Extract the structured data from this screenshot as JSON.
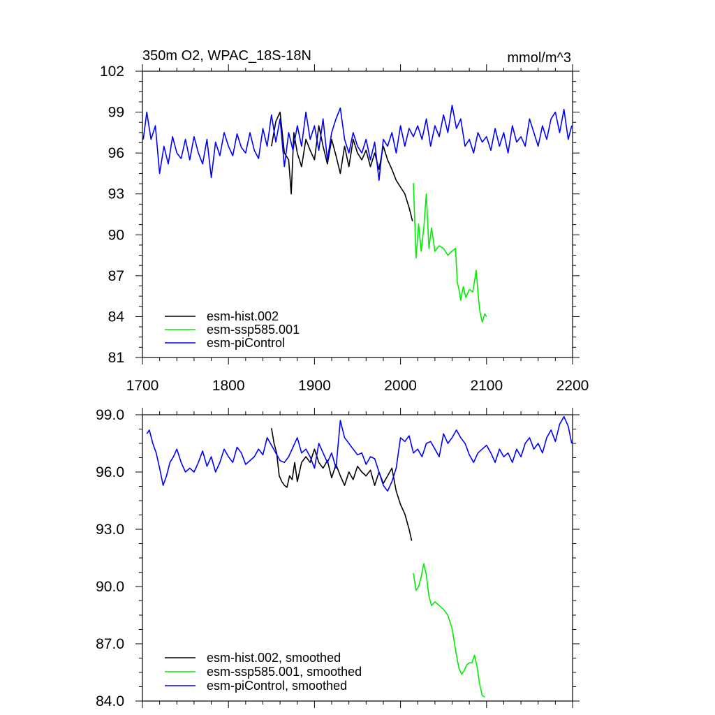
{
  "chart_data": [
    {
      "type": "line",
      "title": "350m O2, WPAC_18S-18N",
      "units": "mmol/m^3",
      "xlim": [
        1700,
        2200
      ],
      "ylim": [
        81,
        102
      ],
      "x_ticks": [
        1700,
        1800,
        1900,
        2000,
        2100,
        2200
      ],
      "x_tick_labels": [
        "1700",
        "1800",
        "1900",
        "2000",
        "2100",
        "2200"
      ],
      "y_ticks": [
        81,
        84,
        87,
        90,
        93,
        96,
        99,
        102
      ],
      "y_tick_labels": [
        "81",
        "84",
        "87",
        "90",
        "93",
        "96",
        "99",
        "102"
      ],
      "legend_position": "bottom-left",
      "series": [
        {
          "name": "esm-hist.002",
          "color": "#000000",
          "x": [
            1850,
            1855,
            1860,
            1865,
            1870,
            1873,
            1876,
            1880,
            1885,
            1890,
            1895,
            1900,
            1905,
            1910,
            1915,
            1920,
            1925,
            1930,
            1935,
            1940,
            1945,
            1950,
            1955,
            1960,
            1965,
            1970,
            1975,
            1980,
            1985,
            1990,
            1995,
            2000,
            2005,
            2010,
            2014
          ],
          "y": [
            96.5,
            98.3,
            99.0,
            96.0,
            95.5,
            93.0,
            97.5,
            96.0,
            95.0,
            97.0,
            96.2,
            95.5,
            98.0,
            96.5,
            95.2,
            97.0,
            95.8,
            94.5,
            96.5,
            95.0,
            97.0,
            96.0,
            95.5,
            96.2,
            95.0,
            96.0,
            94.8,
            96.5,
            95.5,
            94.8,
            94.0,
            93.5,
            93.0,
            92.0,
            91.0
          ]
        },
        {
          "name": "esm-ssp585.001",
          "color": "#00ee00",
          "x": [
            2015,
            2018,
            2021,
            2024,
            2027,
            2030,
            2033,
            2036,
            2040,
            2045,
            2050,
            2055,
            2060,
            2064,
            2066,
            2068,
            2070,
            2073,
            2076,
            2080,
            2084,
            2088,
            2090,
            2092,
            2095,
            2098,
            2100
          ],
          "y": [
            93.8,
            88.3,
            90.8,
            88.8,
            90.5,
            93.0,
            89.0,
            90.5,
            88.8,
            89.2,
            89.0,
            88.5,
            88.8,
            89.0,
            86.5,
            86.0,
            85.2,
            86.2,
            85.4,
            86.0,
            85.8,
            87.4,
            85.8,
            84.5,
            83.6,
            84.2,
            84.0
          ]
        },
        {
          "name": "esm-piControl",
          "color": "#0000ff",
          "x": [
            1701,
            1705,
            1710,
            1715,
            1720,
            1725,
            1730,
            1735,
            1740,
            1745,
            1750,
            1755,
            1760,
            1765,
            1770,
            1775,
            1780,
            1785,
            1790,
            1795,
            1800,
            1805,
            1810,
            1815,
            1820,
            1825,
            1830,
            1835,
            1840,
            1845,
            1850,
            1855,
            1860,
            1865,
            1870,
            1875,
            1880,
            1885,
            1890,
            1895,
            1900,
            1905,
            1910,
            1915,
            1920,
            1925,
            1930,
            1935,
            1940,
            1945,
            1950,
            1955,
            1960,
            1965,
            1970,
            1975,
            1980,
            1985,
            1990,
            1995,
            2000,
            2005,
            2010,
            2015,
            2020,
            2025,
            2030,
            2035,
            2040,
            2045,
            2050,
            2055,
            2060,
            2065,
            2070,
            2075,
            2080,
            2085,
            2090,
            2095,
            2100,
            2105,
            2110,
            2115,
            2120,
            2125,
            2130,
            2135,
            2140,
            2145,
            2150,
            2155,
            2160,
            2165,
            2170,
            2175,
            2180,
            2185,
            2190,
            2195,
            2199
          ],
          "y": [
            97.0,
            99.0,
            97.0,
            98.0,
            94.5,
            96.5,
            95.2,
            97.2,
            96.0,
            95.6,
            97.0,
            95.5,
            97.2,
            96.0,
            95.2,
            97.0,
            94.2,
            96.8,
            95.8,
            97.5,
            96.5,
            95.8,
            97.4,
            96.4,
            96.0,
            97.5,
            96.2,
            95.6,
            97.8,
            96.5,
            98.8,
            96.8,
            98.5,
            95.0,
            97.5,
            96.2,
            98.0,
            96.5,
            99.0,
            97.0,
            98.0,
            96.2,
            98.5,
            95.5,
            97.5,
            98.5,
            99.3,
            97.0,
            96.0,
            97.5,
            96.5,
            96.0,
            97.0,
            95.5,
            96.8,
            94.0,
            97.0,
            96.5,
            97.5,
            96.0,
            98.0,
            96.5,
            97.8,
            97.2,
            98.0,
            97.0,
            98.5,
            96.5,
            98.0,
            97.2,
            98.8,
            97.5,
            99.5,
            97.8,
            98.5,
            96.5,
            97.0,
            96.0,
            97.5,
            96.8,
            97.2,
            96.2,
            97.8,
            96.5,
            97.5,
            96.0,
            98.0,
            96.8,
            97.2,
            96.5,
            98.5,
            97.5,
            96.5,
            98.0,
            97.0,
            98.5,
            99.0,
            97.5,
            99.2,
            97.0,
            98.0
          ]
        }
      ]
    },
    {
      "type": "line",
      "xlim": [
        1700,
        2200
      ],
      "ylim": [
        84,
        99
      ],
      "x_ticks": [
        1700,
        1800,
        1900,
        2000,
        2100,
        2200
      ],
      "y_ticks": [
        84,
        87,
        90,
        93,
        96,
        99
      ],
      "y_tick_labels": [
        "84.0",
        "87.0",
        "90.0",
        "93.0",
        "96.0",
        "99.0"
      ],
      "legend_position": "bottom-left",
      "series": [
        {
          "name": "esm-hist.002, smoothed",
          "color": "#000000",
          "x": [
            1850,
            1853,
            1856,
            1859,
            1862,
            1865,
            1868,
            1871,
            1874,
            1877,
            1880,
            1885,
            1890,
            1895,
            1900,
            1905,
            1910,
            1915,
            1920,
            1925,
            1930,
            1935,
            1940,
            1945,
            1950,
            1955,
            1960,
            1965,
            1970,
            1975,
            1980,
            1985,
            1990,
            1995,
            2000,
            2005,
            2010,
            2013
          ],
          "y": [
            98.3,
            97.5,
            97.0,
            95.8,
            95.5,
            95.3,
            95.2,
            95.8,
            95.6,
            96.5,
            95.5,
            96.5,
            96.8,
            96.5,
            97.2,
            96.5,
            96.2,
            96.6,
            95.7,
            96.4,
            95.8,
            95.3,
            96.0,
            95.6,
            96.3,
            96.0,
            95.8,
            96.1,
            95.3,
            96.0,
            95.4,
            95.8,
            96.2,
            95.0,
            94.3,
            93.8,
            93.0,
            92.4
          ]
        },
        {
          "name": "esm-ssp585.001, smoothed",
          "color": "#00ee00",
          "x": [
            2015,
            2018,
            2021,
            2024,
            2027,
            2030,
            2033,
            2036,
            2040,
            2045,
            2050,
            2055,
            2060,
            2065,
            2068,
            2071,
            2074,
            2077,
            2080,
            2083,
            2086,
            2089,
            2092,
            2095,
            2098
          ],
          "y": [
            90.7,
            89.8,
            90.0,
            90.5,
            91.2,
            90.6,
            89.5,
            89.0,
            89.2,
            89.0,
            88.8,
            88.5,
            87.8,
            86.4,
            85.7,
            85.4,
            85.6,
            85.9,
            86.0,
            86.0,
            86.4,
            85.8,
            84.9,
            84.3,
            84.2
          ]
        },
        {
          "name": "esm-piControl, smoothed",
          "color": "#0000ff",
          "x": [
            1705,
            1708,
            1712,
            1716,
            1720,
            1724,
            1728,
            1732,
            1736,
            1740,
            1745,
            1750,
            1755,
            1760,
            1765,
            1770,
            1775,
            1780,
            1785,
            1790,
            1795,
            1800,
            1805,
            1810,
            1815,
            1820,
            1825,
            1830,
            1835,
            1840,
            1845,
            1850,
            1855,
            1860,
            1865,
            1870,
            1875,
            1880,
            1885,
            1890,
            1895,
            1900,
            1905,
            1910,
            1915,
            1920,
            1925,
            1930,
            1935,
            1940,
            1945,
            1950,
            1955,
            1960,
            1965,
            1970,
            1975,
            1980,
            1985,
            1990,
            1995,
            2000,
            2005,
            2010,
            2015,
            2020,
            2025,
            2030,
            2035,
            2040,
            2045,
            2050,
            2055,
            2060,
            2065,
            2070,
            2075,
            2080,
            2085,
            2090,
            2095,
            2100,
            2105,
            2110,
            2115,
            2120,
            2125,
            2130,
            2135,
            2140,
            2145,
            2150,
            2155,
            2160,
            2165,
            2170,
            2175,
            2180,
            2185,
            2190,
            2195,
            2199
          ],
          "y": [
            98.0,
            98.2,
            97.5,
            97.0,
            96.2,
            95.3,
            95.8,
            96.5,
            96.8,
            97.2,
            96.5,
            96.0,
            96.2,
            96.0,
            96.5,
            97.1,
            96.3,
            96.8,
            96.0,
            96.5,
            97.2,
            96.8,
            96.5,
            97.3,
            97.0,
            96.4,
            96.6,
            96.8,
            97.2,
            96.9,
            97.8,
            97.4,
            97.0,
            96.6,
            96.5,
            96.8,
            97.3,
            97.8,
            97.0,
            97.2,
            96.8,
            96.2,
            97.5,
            97.0,
            96.5,
            97.0,
            96.2,
            98.7,
            97.8,
            97.5,
            97.2,
            96.9,
            97.0,
            96.4,
            96.8,
            96.7,
            96.0,
            95.3,
            95.0,
            95.5,
            96.2,
            97.8,
            97.6,
            97.9,
            97.0,
            97.2,
            96.8,
            97.5,
            97.6,
            97.2,
            96.8,
            98.0,
            97.5,
            97.8,
            98.2,
            97.8,
            97.5,
            96.9,
            96.5,
            97.0,
            97.2,
            97.4,
            97.0,
            96.5,
            97.2,
            96.8,
            97.0,
            96.5,
            97.2,
            96.8,
            97.5,
            97.8,
            97.2,
            97.5,
            97.0,
            97.8,
            98.2,
            97.6,
            98.5,
            98.9,
            98.4,
            97.5
          ]
        }
      ]
    }
  ]
}
